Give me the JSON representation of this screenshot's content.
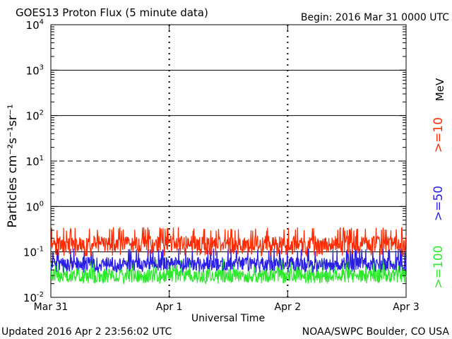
{
  "header": {
    "title": "GOES13 Proton Flux (5 minute data)",
    "begin": "Begin: 2016 Mar 31 0000 UTC"
  },
  "footer": {
    "updated": "Updated 2016 Apr  2 23:56:02 UTC",
    "credit": "NOAA/SWPC Boulder, CO USA"
  },
  "chart_data": {
    "type": "line",
    "title": "GOES13 Proton Flux (5 minute data)",
    "xlabel": "Universal Time",
    "ylabel": "Particles cm⁻²s⁻¹sr⁻¹",
    "y_scale": "log",
    "ylim": [
      0.01,
      10000
    ],
    "x_range_days": [
      0,
      3
    ],
    "x_ticks": [
      "Mar 31",
      "Apr 1",
      "Apr 2",
      "Apr 3"
    ],
    "y_ticks": [
      {
        "base": "10",
        "exp": "-2"
      },
      {
        "base": "10",
        "exp": "-1"
      },
      {
        "base": "10",
        "exp": "0"
      },
      {
        "base": "10",
        "exp": "1"
      },
      {
        "base": "10",
        "exp": "2"
      },
      {
        "base": "10",
        "exp": "3"
      },
      {
        "base": "10",
        "exp": "4"
      }
    ],
    "threshold_lines": [
      {
        "value": 10,
        "style": "dashed"
      },
      {
        "value": 0.1,
        "style": "solid"
      }
    ],
    "right_unit": "MeV",
    "series": [
      {
        "name": ">=10",
        "color": "#ff2a00",
        "typical_value": 0.15,
        "range": [
          0.08,
          0.35
        ]
      },
      {
        "name": ">=50",
        "color": "#2a1ee6",
        "typical_value": 0.055,
        "range": [
          0.035,
          0.12
        ]
      },
      {
        "name": ">=100",
        "color": "#2ee82e",
        "typical_value": 0.03,
        "range": [
          0.02,
          0.07
        ]
      }
    ]
  }
}
